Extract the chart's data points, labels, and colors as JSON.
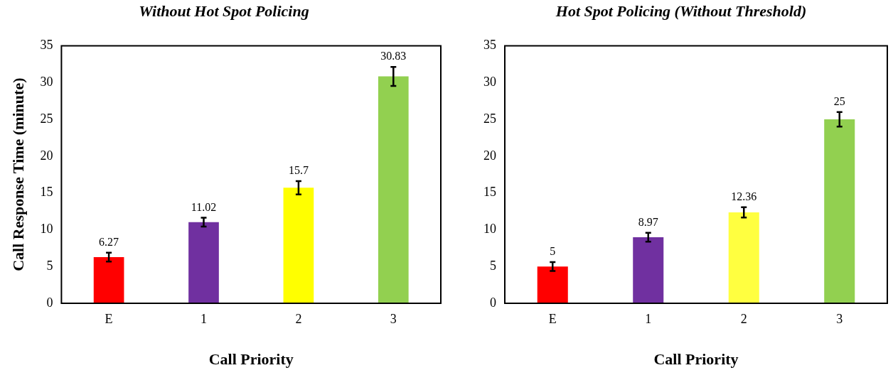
{
  "chart_data": [
    {
      "type": "bar",
      "title": "Without Hot Spot Policing",
      "xlabel": "Call Priority",
      "ylabel": "Call Response Time (minute)",
      "categories": [
        "E",
        "1",
        "2",
        "3"
      ],
      "values": [
        6.27,
        11.02,
        15.7,
        30.83
      ],
      "colors": [
        "#ff0000",
        "#7030a0",
        "#ffff00",
        "#92d050"
      ],
      "errors": [
        0.6,
        0.6,
        0.9,
        1.3
      ],
      "ylim": [
        0,
        35
      ],
      "yticks": [
        0,
        5,
        10,
        15,
        20,
        25,
        30,
        35
      ],
      "data_labels": true,
      "grid": false,
      "legend": false
    },
    {
      "type": "bar",
      "title": "Hot Spot Policing (Without Threshold)",
      "xlabel": "Call Priority",
      "categories": [
        "E",
        "1",
        "2",
        "3"
      ],
      "values": [
        5,
        8.97,
        12.36,
        25
      ],
      "colors": [
        "#ff0000",
        "#7030a0",
        "#ffff40",
        "#92d050"
      ],
      "errors": [
        0.6,
        0.6,
        0.7,
        1.0
      ],
      "ylim": [
        0,
        35
      ],
      "yticks": [
        0,
        5,
        10,
        15,
        20,
        25,
        30,
        35
      ],
      "data_labels": true,
      "grid": false,
      "legend": false
    }
  ]
}
